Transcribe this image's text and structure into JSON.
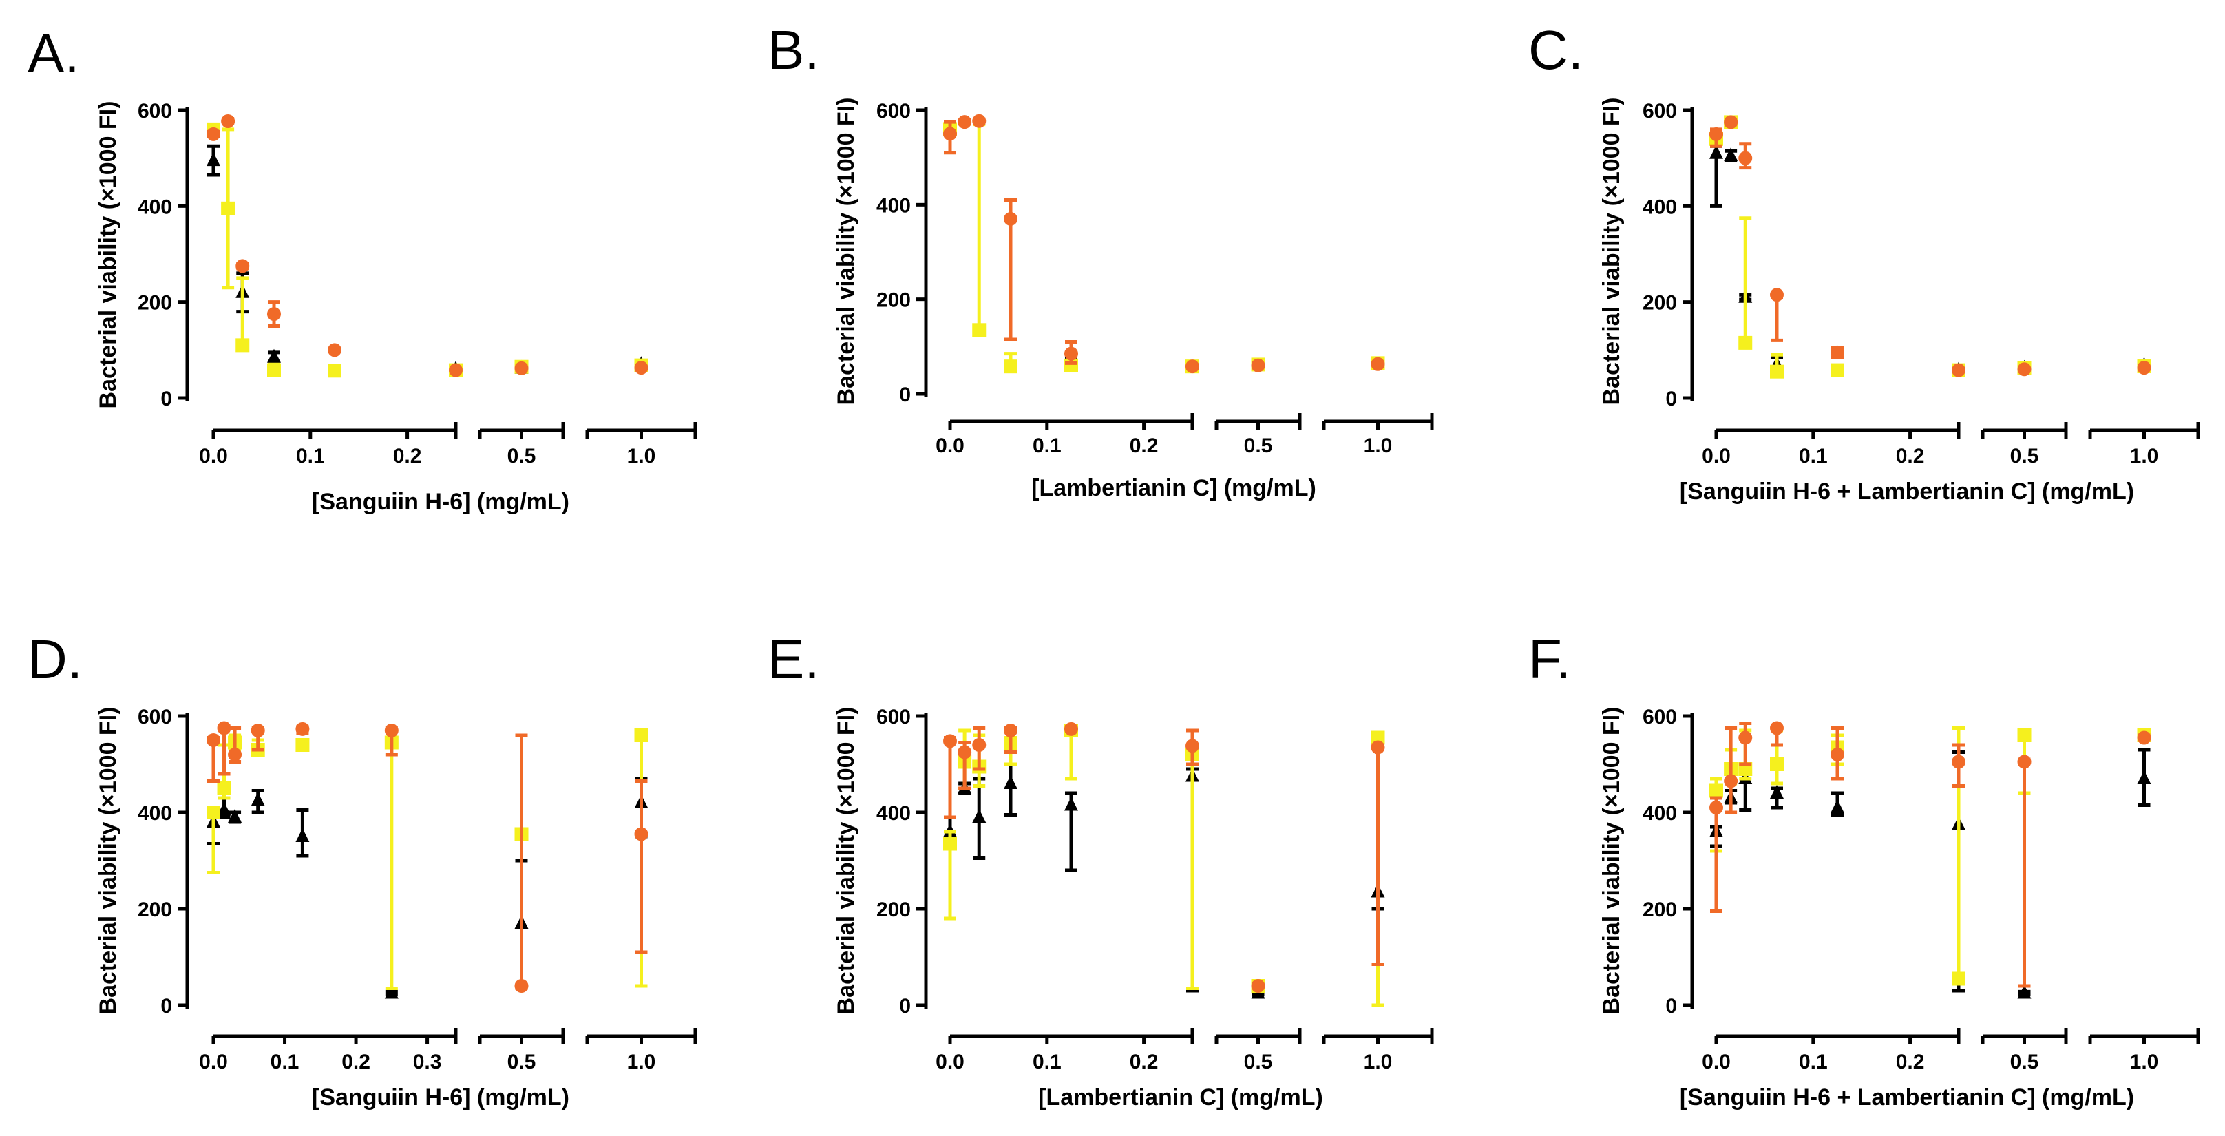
{
  "colors": {
    "black": "#000000",
    "yellow": "#f5f01e",
    "orange": "#f06a28"
  },
  "ylabel": "Bacterial viability (×1000 FI)",
  "yticks": [
    "0",
    "200",
    "400",
    "600"
  ],
  "xticks": [
    "0.0",
    "0.1",
    "0.2",
    "0.5",
    "1.0"
  ],
  "xticks_d": [
    "0.0",
    "0.1",
    "0.2",
    "0.3",
    "0.5",
    "1.0"
  ],
  "chart_data": [
    {
      "type": "scatter",
      "letter": "A.",
      "title": "",
      "xlabel": "[Sanguiin H-6] (mg/mL)",
      "ylabel": "Bacterial viability (×1000 FI)",
      "ylim": [
        0,
        600
      ],
      "x_break": "segmented",
      "series": [
        {
          "marker": "triangle",
          "color": "#000000",
          "points": [
            [
              0,
              495,
              465,
              525
            ],
            [
              0.03,
              220,
              180,
              260
            ],
            [
              0.0625,
              85,
              75,
              95
            ],
            [
              0.25,
              60,
              55,
              65
            ],
            [
              0.5,
              62,
              58,
              66
            ],
            [
              1.0,
              70,
              65,
              75
            ]
          ]
        },
        {
          "marker": "square",
          "color": "#f5f01e",
          "points": [
            [
              0,
              560,
              555,
              565
            ],
            [
              0.015,
              395,
              230,
              560
            ],
            [
              0.03,
              110,
              105,
              250
            ],
            [
              0.0625,
              58,
              55,
              70
            ],
            [
              0.125,
              57,
              54,
              60
            ],
            [
              0.25,
              58,
              55,
              61
            ],
            [
              0.5,
              65,
              62,
              68
            ],
            [
              1.0,
              68,
              65,
              71
            ]
          ]
        },
        {
          "marker": "circle",
          "color": "#f06a28",
          "points": [
            [
              0,
              550,
              545,
              555
            ],
            [
              0.015,
              577,
              572,
              582
            ],
            [
              0.03,
              275,
              270,
              280
            ],
            [
              0.0625,
              175,
              150,
              200
            ],
            [
              0.125,
              100,
              97,
              103
            ],
            [
              0.25,
              58,
              55,
              61
            ],
            [
              0.5,
              62,
              58,
              66
            ],
            [
              1.0,
              63,
              60,
              66
            ]
          ]
        }
      ]
    },
    {
      "type": "scatter",
      "letter": "B.",
      "title": "",
      "xlabel": "[Lambertianin C] (mg/mL)",
      "ylabel": "Bacterial viability (×1000 FI)",
      "ylim": [
        0,
        600
      ],
      "x_break": "segmented",
      "series": [
        {
          "marker": "triangle",
          "color": "#000000",
          "points": [
            [
              0.125,
              65,
              55,
              75
            ]
          ]
        },
        {
          "marker": "square",
          "color": "#f5f01e",
          "points": [
            [
              0,
              560,
              555,
              565
            ],
            [
              0.03,
              135,
              125,
              570
            ],
            [
              0.0625,
              58,
              55,
              85
            ],
            [
              0.125,
              60,
              57,
              63
            ],
            [
              0.25,
              58,
              55,
              61
            ],
            [
              0.5,
              62,
              59,
              65
            ],
            [
              1.0,
              65,
              62,
              68
            ]
          ]
        },
        {
          "marker": "circle",
          "color": "#f06a28",
          "points": [
            [
              0,
              550,
              510,
              575
            ],
            [
              0.015,
              575,
              571,
              579
            ],
            [
              0.03,
              577,
              573,
              581
            ],
            [
              0.0625,
              370,
              115,
              410
            ],
            [
              0.125,
              85,
              65,
              110
            ],
            [
              0.25,
              58,
              55,
              61
            ],
            [
              0.5,
              60,
              57,
              63
            ],
            [
              1.0,
              63,
              60,
              66
            ]
          ]
        }
      ]
    },
    {
      "type": "scatter",
      "letter": "C.",
      "title": "",
      "xlabel": "[Sanguiin H-6 + Lambertianin C] (mg/mL)",
      "ylabel": "Bacterial viability (×1000 FI)",
      "ylim": [
        0,
        600
      ],
      "x_break": "segmented",
      "series": [
        {
          "marker": "triangle",
          "color": "#000000",
          "points": [
            [
              0,
              510,
              400,
              525
            ],
            [
              0.015,
              505,
              495,
              515
            ],
            [
              0.03,
              210,
              205,
              215
            ],
            [
              0.0625,
              70,
              60,
              85
            ],
            [
              0.25,
              58,
              55,
              61
            ],
            [
              0.5,
              62,
              58,
              66
            ],
            [
              1.0,
              68,
              64,
              72
            ]
          ]
        },
        {
          "marker": "square",
          "color": "#f5f01e",
          "points": [
            [
              0,
              540,
              535,
              545
            ],
            [
              0.015,
              575,
              570,
              580
            ],
            [
              0.03,
              115,
              110,
              375
            ],
            [
              0.0625,
              55,
              52,
              90
            ],
            [
              0.125,
              58,
              55,
              62
            ],
            [
              0.25,
              58,
              55,
              61
            ],
            [
              0.5,
              62,
              59,
              65
            ],
            [
              1.0,
              66,
              62,
              70
            ]
          ]
        },
        {
          "marker": "circle",
          "color": "#f06a28",
          "points": [
            [
              0,
              550,
              525,
              560
            ],
            [
              0.015,
              575,
              570,
              580
            ],
            [
              0.03,
              500,
              480,
              530
            ],
            [
              0.0625,
              215,
              120,
              210
            ],
            [
              0.125,
              95,
              85,
              105
            ],
            [
              0.25,
              58,
              55,
              61
            ],
            [
              0.5,
              60,
              57,
              63
            ],
            [
              1.0,
              63,
              60,
              66
            ]
          ]
        }
      ]
    },
    {
      "type": "scatter",
      "letter": "D.",
      "title": "",
      "xlabel": "[Sanguiin H-6] (mg/mL)",
      "ylabel": "Bacterial viability (×1000 FI)",
      "ylim": [
        0,
        600
      ],
      "x_break": "segmented",
      "series": [
        {
          "marker": "triangle",
          "color": "#000000",
          "points": [
            [
              0,
              380,
              335,
              405
            ],
            [
              0.015,
              405,
              390,
              460
            ],
            [
              0.03,
              390,
              380,
              400
            ],
            [
              0.0625,
              425,
              400,
              445
            ],
            [
              0.125,
              350,
              310,
              405
            ],
            [
              0.25,
              25,
              22,
              28
            ],
            [
              0.5,
              170,
              40,
              300
            ],
            [
              1.0,
              420,
              350,
              470
            ]
          ]
        },
        {
          "marker": "square",
          "color": "#f5f01e",
          "points": [
            [
              0,
              400,
              275,
              410
            ],
            [
              0.015,
              450,
              430,
              540
            ],
            [
              0.03,
              545,
              530,
              560
            ],
            [
              0.0625,
              530,
              520,
              550
            ],
            [
              0.125,
              540,
              535,
              550
            ],
            [
              0.25,
              545,
              35,
              550
            ],
            [
              0.5,
              355,
              40,
              360
            ],
            [
              1.0,
              560,
              40,
              560
            ]
          ]
        },
        {
          "marker": "circle",
          "color": "#f06a28",
          "points": [
            [
              0,
              550,
              465,
              555
            ],
            [
              0.015,
              575,
              480,
              580
            ],
            [
              0.03,
              520,
              505,
              575
            ],
            [
              0.0625,
              570,
              530,
              575
            ],
            [
              0.125,
              573,
              565,
              578
            ],
            [
              0.25,
              570,
              520,
              575
            ],
            [
              0.5,
              40,
              35,
              560
            ],
            [
              1.0,
              355,
              110,
              465
            ]
          ]
        }
      ]
    },
    {
      "type": "scatter",
      "letter": "E.",
      "title": "",
      "xlabel": "[Lambertianin C] (mg/mL)",
      "ylabel": "Bacterial viability (×1000 FI)",
      "ylim": [
        0,
        600
      ],
      "x_break": "segmented",
      "series": [
        {
          "marker": "triangle",
          "color": "#000000",
          "points": [
            [
              0,
              360,
              340,
              390
            ],
            [
              0.015,
              450,
              440,
              460
            ],
            [
              0.03,
              390,
              305,
              470
            ],
            [
              0.0625,
              460,
              395,
              500
            ],
            [
              0.125,
              415,
              280,
              440
            ],
            [
              0.25,
              475,
              30,
              490
            ],
            [
              0.5,
              25,
              22,
              28
            ],
            [
              1.0,
              235,
              200,
              545
            ]
          ]
        },
        {
          "marker": "square",
          "color": "#f5f01e",
          "points": [
            [
              0,
              335,
              180,
              360
            ],
            [
              0.015,
              505,
              450,
              570
            ],
            [
              0.03,
              495,
              455,
              560
            ],
            [
              0.0625,
              540,
              500,
              555
            ],
            [
              0.125,
              570,
              470,
              575
            ],
            [
              0.25,
              520,
              35,
              535
            ],
            [
              0.5,
              40,
              37,
              43
            ],
            [
              1.0,
              555,
              0,
              560
            ]
          ]
        },
        {
          "marker": "circle",
          "color": "#f06a28",
          "points": [
            [
              0,
              548,
              390,
              555
            ],
            [
              0.015,
              525,
              450,
              545
            ],
            [
              0.03,
              540,
              490,
              575
            ],
            [
              0.0625,
              570,
              525,
              575
            ],
            [
              0.125,
              573,
              568,
              578
            ],
            [
              0.25,
              538,
              500,
              570
            ],
            [
              0.5,
              40,
              37,
              43
            ],
            [
              1.0,
              535,
              85,
              540
            ]
          ]
        }
      ]
    },
    {
      "type": "scatter",
      "letter": "F.",
      "title": "",
      "xlabel": "[Sanguiin H-6 + Lambertianin C] (mg/mL)",
      "ylabel": "Bacterial viability (×1000 FI)",
      "ylim": [
        0,
        600
      ],
      "x_break": "segmented",
      "series": [
        {
          "marker": "triangle",
          "color": "#000000",
          "points": [
            [
              0,
              360,
              330,
              370
            ],
            [
              0.015,
              430,
              420,
              445
            ],
            [
              0.03,
              470,
              405,
              490
            ],
            [
              0.0625,
              440,
              410,
              450
            ],
            [
              0.125,
              410,
              395,
              440
            ],
            [
              0.25,
              375,
              30,
              525
            ],
            [
              0.5,
              25,
              22,
              28
            ],
            [
              1.0,
              470,
              415,
              530
            ]
          ]
        },
        {
          "marker": "square",
          "color": "#f5f01e",
          "points": [
            [
              0,
              445,
              320,
              470
            ],
            [
              0.015,
              490,
              460,
              530
            ],
            [
              0.03,
              490,
              470,
              570
            ],
            [
              0.0625,
              500,
              460,
              570
            ],
            [
              0.125,
              535,
              500,
              560
            ],
            [
              0.25,
              55,
              45,
              575
            ],
            [
              0.5,
              560,
              440,
              565
            ],
            [
              1.0,
              560,
              555,
              565
            ]
          ]
        },
        {
          "marker": "circle",
          "color": "#f06a28",
          "points": [
            [
              0,
              410,
              195,
              430
            ],
            [
              0.015,
              465,
              400,
              575
            ],
            [
              0.03,
              555,
              500,
              585
            ],
            [
              0.0625,
              575,
              540,
              578
            ],
            [
              0.125,
              520,
              470,
              575
            ],
            [
              0.25,
              505,
              455,
              540
            ],
            [
              0.5,
              505,
              40,
              510
            ],
            [
              1.0,
              555,
              550,
              560
            ]
          ]
        }
      ]
    }
  ]
}
